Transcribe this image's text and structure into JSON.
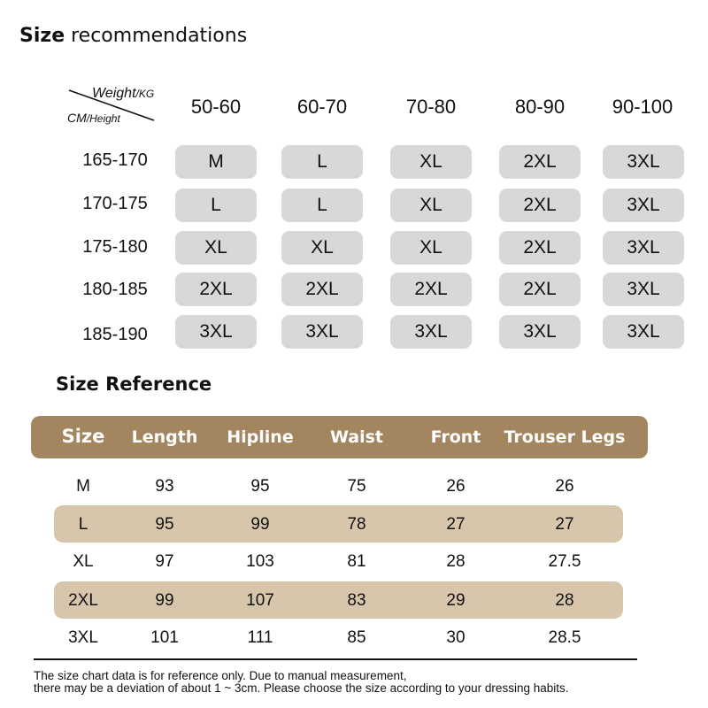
{
  "title": {
    "bold": "Size",
    "rest": " recommendations"
  },
  "corner": {
    "weight_big": "Weight",
    "weight_small": "/KG",
    "height_big": "CM",
    "height_small": "/Height"
  },
  "weights": [
    "50-60",
    "60-70",
    "70-80",
    "80-90",
    "90-100"
  ],
  "heights": [
    "165-170",
    "170-175",
    "175-180",
    "180-185",
    "185-190"
  ],
  "grid": [
    [
      "M",
      "L",
      "XL",
      "2XL",
      "3XL"
    ],
    [
      "L",
      "L",
      "XL",
      "2XL",
      "3XL"
    ],
    [
      "XL",
      "XL",
      "XL",
      "2XL",
      "3XL"
    ],
    [
      "2XL",
      "2XL",
      "2XL",
      "2XL",
      "3XL"
    ],
    [
      "3XL",
      "3XL",
      "3XL",
      "3XL",
      "3XL"
    ]
  ],
  "reference": {
    "title": "Size Reference",
    "headers": [
      "Size",
      "Length",
      "Hipline",
      "Waist",
      "Front",
      "Trouser Legs"
    ],
    "rows": [
      [
        "M",
        "93",
        "95",
        "75",
        "26",
        "26"
      ],
      [
        "L",
        "95",
        "99",
        "78",
        "27",
        "27"
      ],
      [
        "XL",
        "97",
        "103",
        "81",
        "28",
        "27.5"
      ],
      [
        "2XL",
        "99",
        "107",
        "83",
        "29",
        "28"
      ],
      [
        "3XL",
        "101",
        "111",
        "85",
        "30",
        "28.5"
      ]
    ]
  },
  "note": {
    "line1": "The size chart data is for reference only. Due to manual measurement,",
    "line2": "there may be a deviation of about 1 ~ 3cm. Please choose the size according to your dressing habits."
  },
  "colors": {
    "cell_gray": "#d8d8d8",
    "header_brown": "#a3865f",
    "band_tan": "#d7c6ab"
  }
}
